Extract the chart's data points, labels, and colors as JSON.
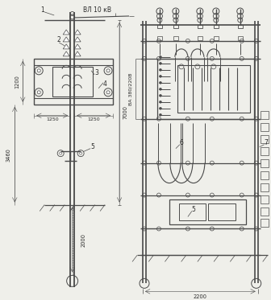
{
  "bg_color": "#efefea",
  "lc": "#4a4a4a",
  "lc2": "#333333",
  "title_text": "ВЛ 10 кВ",
  "label_vl": "ВА 380/220В",
  "dim_1200": "1200",
  "dim_7000": "7000",
  "dim_1250": "1250",
  "dim_3460": "3460",
  "dim_2000": "2000",
  "dim_2200": "2200",
  "labels": [
    "1",
    "2",
    "3",
    "4",
    "5",
    "6",
    "7"
  ]
}
